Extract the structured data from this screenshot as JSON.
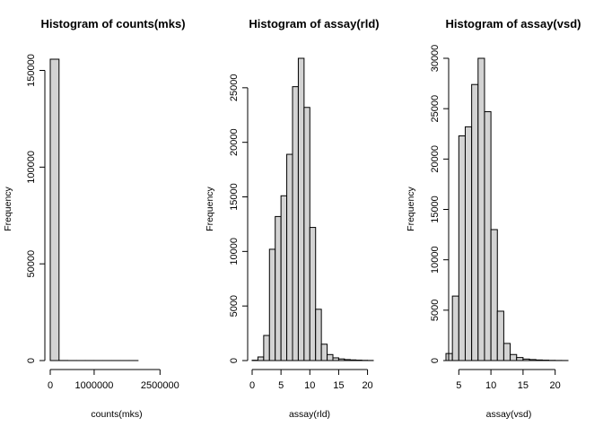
{
  "chart_data": [
    {
      "type": "bar",
      "title": "Histogram of counts(mks)",
      "xlabel": "counts(mks)",
      "ylabel": "Frequency",
      "bin_width": 200000,
      "bins_start": [
        0,
        200000,
        400000,
        600000,
        800000,
        1000000,
        1200000,
        1400000,
        1600000,
        1800000,
        2000000,
        2200000,
        2400000,
        2600000
      ],
      "values": [
        155800,
        40,
        15,
        10,
        8,
        6,
        5,
        4,
        3,
        3,
        2,
        2,
        2,
        1
      ],
      "xlim": [
        0,
        2800000
      ],
      "ylim": [
        0,
        155800
      ],
      "xticks": [
        0,
        1000000,
        2500000
      ],
      "xtick_labels": [
        "0",
        "1000000",
        "2500000"
      ],
      "yticks": [
        0,
        50000,
        100000,
        150000
      ],
      "ytick_labels": [
        "0",
        "50000",
        "100000",
        "150000"
      ],
      "grid": false,
      "legend": "none"
    },
    {
      "type": "bar",
      "title": "Histogram of assay(rld)",
      "xlabel": "assay(rld)",
      "ylabel": "Frequency",
      "bin_width": 1,
      "bins_start": [
        0,
        1,
        2,
        3,
        4,
        5,
        6,
        7,
        8,
        9,
        10,
        11,
        12,
        13,
        14,
        15,
        16,
        17,
        18,
        19,
        20
      ],
      "values": [
        30,
        330,
        2300,
        10200,
        13200,
        15100,
        18900,
        25100,
        27700,
        23200,
        12200,
        4700,
        1500,
        550,
        250,
        150,
        90,
        60,
        40,
        20,
        10
      ],
      "xlim": [
        0,
        21
      ],
      "ylim": [
        0,
        27700
      ],
      "xticks": [
        0,
        5,
        10,
        15,
        20
      ],
      "xtick_labels": [
        "0",
        "5",
        "10",
        "15",
        "20"
      ],
      "yticks": [
        0,
        5000,
        10000,
        15000,
        20000,
        25000
      ],
      "ytick_labels": [
        "0",
        "5000",
        "10000",
        "15000",
        "20000",
        "25000"
      ],
      "grid": false,
      "legend": "none"
    },
    {
      "type": "bar",
      "title": "Histogram of assay(vsd)",
      "xlabel": "assay(vsd)",
      "ylabel": "Frequency",
      "bin_width": 1,
      "bins_start": [
        3,
        4,
        5,
        6,
        7,
        8,
        9,
        10,
        11,
        12,
        13,
        14,
        15,
        16,
        17,
        18,
        19,
        20,
        21
      ],
      "values": [
        700,
        6400,
        22300,
        23200,
        27400,
        30000,
        24700,
        13000,
        4900,
        1700,
        600,
        300,
        150,
        100,
        60,
        40,
        20,
        10,
        5
      ],
      "xlim": [
        3,
        22
      ],
      "ylim": [
        0,
        30000
      ],
      "xticks": [
        5,
        10,
        15,
        20
      ],
      "xtick_labels": [
        "5",
        "10",
        "15",
        "20"
      ],
      "yticks": [
        0,
        5000,
        10000,
        15000,
        20000,
        25000,
        30000
      ],
      "ytick_labels": [
        "0",
        "5000",
        "10000",
        "15000",
        "20000",
        "25000",
        "30000"
      ],
      "grid": false,
      "legend": "none"
    }
  ],
  "colors": {
    "bar_fill": "#d3d3d3",
    "bar_stroke": "#000000",
    "axis": "#000000",
    "background": "#ffffff"
  }
}
